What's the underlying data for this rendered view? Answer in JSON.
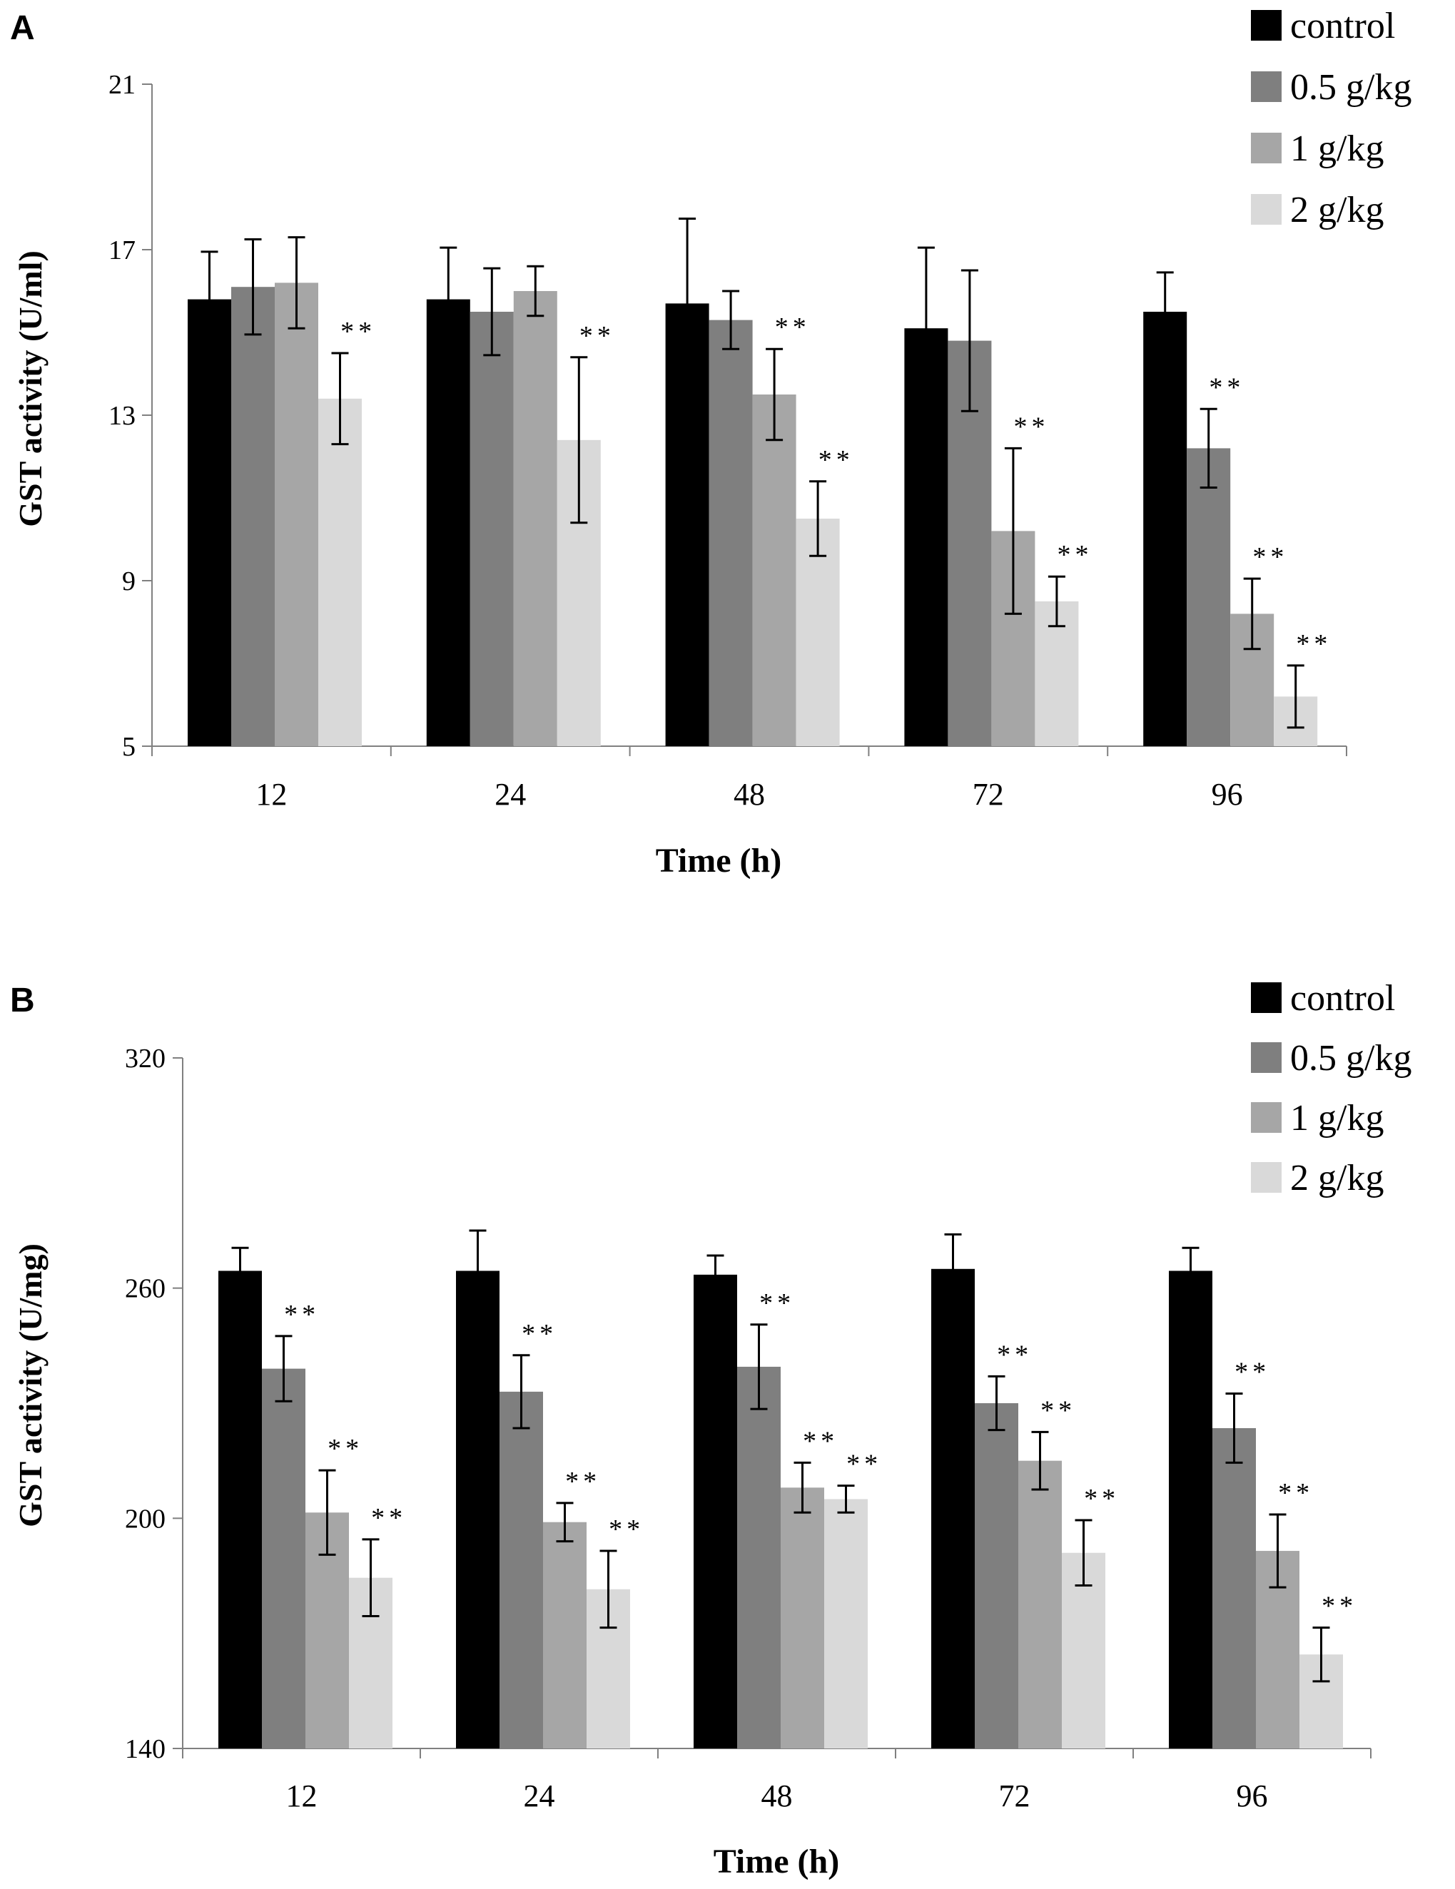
{
  "figure": {
    "panels": [
      "A",
      "B"
    ]
  },
  "colors": {
    "control": "#000000",
    "0.5 g/kg": "#7f7f7f",
    "1 g/kg": "#a6a6a6",
    "2 g/kg": "#d9d9d9",
    "axis": "#808080",
    "error_bar": "#000000"
  },
  "chart_data": [
    {
      "panel": "A",
      "type": "bar",
      "title": "",
      "xlabel": "Time (h)",
      "ylabel": "GST activity (U/ml)",
      "ylim": [
        5,
        21
      ],
      "yticks": [
        5,
        9,
        13,
        17,
        21
      ],
      "categories": [
        "12",
        "24",
        "48",
        "72",
        "96"
      ],
      "legend": "top-right",
      "grid": false,
      "series": [
        {
          "name": "control",
          "values": [
            15.8,
            15.8,
            15.7,
            15.1,
            15.5
          ],
          "errors": [
            1.15,
            1.25,
            2.05,
            1.95,
            0.95
          ],
          "significance": [
            "",
            "",
            "",
            "",
            ""
          ]
        },
        {
          "name": "0.5 g/kg",
          "values": [
            16.1,
            15.5,
            15.3,
            14.8,
            12.2
          ],
          "errors": [
            1.15,
            1.05,
            0.7,
            1.7,
            0.95
          ],
          "significance": [
            "",
            "",
            "",
            "",
            "**"
          ]
        },
        {
          "name": "1 g/kg",
          "values": [
            16.2,
            16.0,
            13.5,
            10.2,
            8.2
          ],
          "errors": [
            1.1,
            0.6,
            1.1,
            2.0,
            0.85
          ],
          "significance": [
            "",
            "",
            "**",
            "**",
            "**"
          ]
        },
        {
          "name": "2 g/kg",
          "values": [
            13.4,
            12.4,
            10.5,
            8.5,
            6.2
          ],
          "errors": [
            1.1,
            2.0,
            0.9,
            0.6,
            0.75
          ],
          "significance": [
            "**",
            "**",
            "**",
            "**",
            "**"
          ]
        }
      ]
    },
    {
      "panel": "B",
      "type": "bar",
      "title": "",
      "xlabel": "Time (h)",
      "ylabel": "GST activity (U/mg)",
      "ylim": [
        140,
        320
      ],
      "yticks": [
        140,
        200,
        260,
        320
      ],
      "categories": [
        "12",
        "24",
        "48",
        "72",
        "96"
      ],
      "legend": "top-right",
      "grid": false,
      "series": [
        {
          "name": "control",
          "values": [
            264.5,
            264.5,
            263.5,
            265.0,
            264.5
          ],
          "errors": [
            6.0,
            10.5,
            5.0,
            9.0,
            6.0
          ],
          "significance": [
            "",
            "",
            "",
            "",
            ""
          ]
        },
        {
          "name": "0.5 g/kg",
          "values": [
            239.0,
            233.0,
            239.5,
            230.0,
            223.5
          ],
          "errors": [
            8.5,
            9.5,
            11.0,
            7.0,
            9.0
          ],
          "significance": [
            "**",
            "**",
            "**",
            "**",
            "**"
          ]
        },
        {
          "name": "1 g/kg",
          "values": [
            201.5,
            199.0,
            208.0,
            215.0,
            191.5
          ],
          "errors": [
            11.0,
            5.0,
            6.5,
            7.5,
            9.5
          ],
          "significance": [
            "**",
            "**",
            "**",
            "**",
            "**"
          ]
        },
        {
          "name": "2 g/kg",
          "values": [
            184.5,
            181.5,
            205.0,
            191.0,
            164.5
          ],
          "errors": [
            10.0,
            10.0,
            3.5,
            8.5,
            7.0
          ],
          "significance": [
            "**",
            "**",
            "**",
            "**",
            "**"
          ]
        }
      ]
    }
  ]
}
